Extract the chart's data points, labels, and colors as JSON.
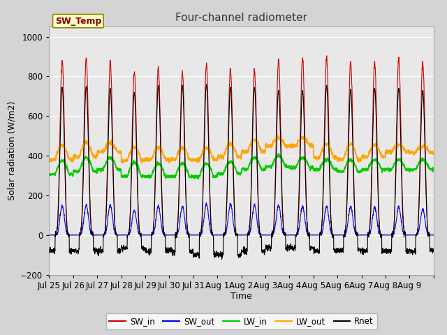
{
  "title": "Four-channel radiometer",
  "xlabel": "Time",
  "ylabel": "Solar radiation (W/m2)",
  "ylim": [
    -200,
    1050
  ],
  "num_days": 16,
  "fig_facecolor": "#d4d4d4",
  "plot_bg_color": "#e8e8e8",
  "sw_in_color": "#cc0000",
  "sw_out_color": "#0000ee",
  "lw_in_color": "#00cc00",
  "lw_out_color": "#ffa500",
  "rnet_color": "#000000",
  "sw_temp_box_color": "#ffffcc",
  "sw_temp_text_color": "#880000",
  "sw_temp_box_edge": "#888800",
  "legend_labels": [
    "SW_in",
    "SW_out",
    "LW_in",
    "LW_out",
    "Rnet"
  ],
  "tick_labels": [
    "Jul 25",
    "Jul 26",
    "Jul 27",
    "Jul 28",
    "Jul 29",
    "Jul 30",
    "Jul 31",
    "Aug 1",
    "Aug 2",
    "Aug 3",
    "Aug 4",
    "Aug 5",
    "Aug 6",
    "Aug 7",
    "Aug 8",
    "Aug 9"
  ],
  "sw_in_peaks": [
    880,
    890,
    870,
    820,
    840,
    820,
    860,
    835,
    830,
    880,
    890,
    890,
    870,
    870,
    890,
    870
  ],
  "sw_out_peaks": [
    145,
    150,
    150,
    125,
    145,
    145,
    155,
    155,
    150,
    150,
    145,
    145,
    145,
    140,
    140,
    130
  ],
  "lw_in_base": [
    305,
    320,
    330,
    295,
    295,
    295,
    295,
    310,
    330,
    345,
    340,
    330,
    320,
    330,
    330,
    330
  ],
  "lw_in_peak": [
    375,
    390,
    390,
    365,
    360,
    360,
    360,
    370,
    390,
    400,
    390,
    380,
    380,
    380,
    380,
    380
  ],
  "lw_out_base": [
    380,
    395,
    420,
    375,
    380,
    380,
    380,
    395,
    420,
    450,
    450,
    390,
    380,
    395,
    420,
    415
  ],
  "lw_out_peak": [
    455,
    465,
    465,
    445,
    440,
    440,
    440,
    460,
    480,
    490,
    490,
    460,
    460,
    455,
    455,
    450
  ],
  "rnet_peaks": [
    745,
    750,
    740,
    720,
    755,
    755,
    760,
    745,
    745,
    730,
    730,
    755,
    735,
    740,
    740,
    730
  ],
  "rnet_night": [
    -80,
    -80,
    -80,
    -65,
    -80,
    -80,
    -100,
    -100,
    -80,
    -65,
    -65,
    -80,
    -75,
    -80,
    -80,
    -80
  ]
}
